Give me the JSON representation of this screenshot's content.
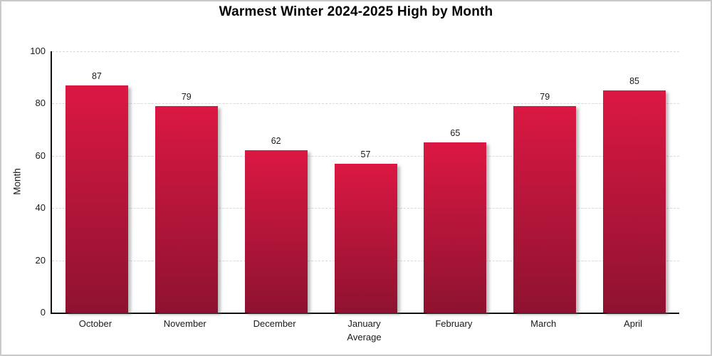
{
  "chart_data": {
    "type": "bar",
    "title": "Warmest Winter 2024-2025 High by Month",
    "xlabel": "Average",
    "ylabel": "Month",
    "categories": [
      "October",
      "November",
      "December",
      "January",
      "February",
      "March",
      "April"
    ],
    "values": [
      87,
      79,
      62,
      57,
      65,
      79,
      85
    ],
    "ylim": [
      0,
      100
    ],
    "yticks": [
      0,
      20,
      40,
      60,
      80,
      100
    ],
    "grid": "horizontal-dashed",
    "legend": "none",
    "colors": {
      "bar_gradient_top": "#DB1843",
      "bar_gradient_bottom": "#8E1230",
      "axis_line": "#111111",
      "gridline": "#D8D8D8",
      "text": "#1A1A1A",
      "title_text": "#000000",
      "background": "#FFFFFF",
      "frame_border": "#C9C9C9"
    }
  }
}
